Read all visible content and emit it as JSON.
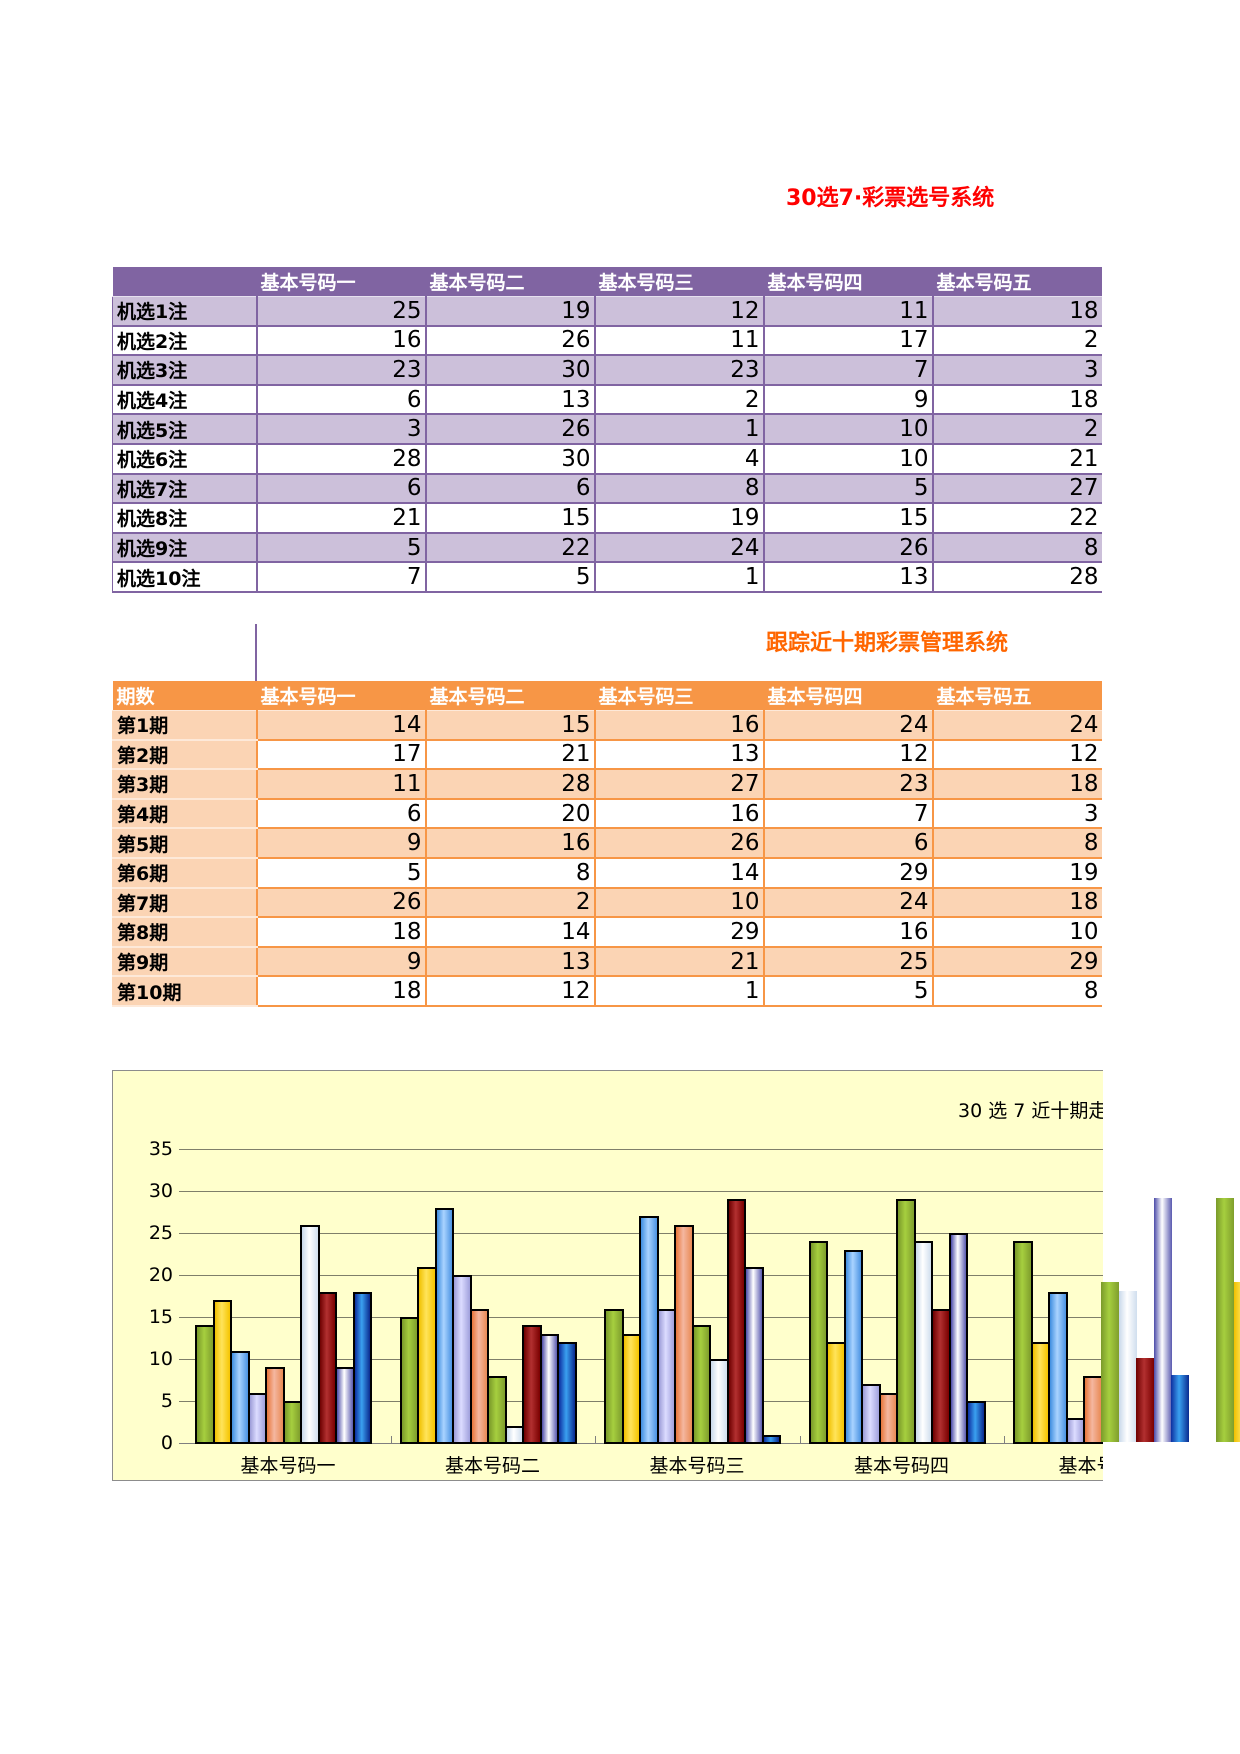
{
  "titles": {
    "main": "30选7·彩票选号系统",
    "tracking": "跟踪近十期彩票管理系统"
  },
  "colors": {
    "main_title": "#ff0000",
    "tracking_title": "#ff6600",
    "pick_header_bg": "#8064a2",
    "pick_band_bg": "#ccc0da",
    "track_header_bg": "#f79646",
    "track_band_bg": "#fbd4b4",
    "chart_bg": "#ffffcc"
  },
  "pick_table": {
    "headers": [
      "",
      "基本号码一",
      "基本号码二",
      "基本号码三",
      "基本号码四",
      "基本号码五"
    ],
    "rows": [
      {
        "label": "机选1注",
        "values": [
          25,
          19,
          12,
          11,
          18
        ]
      },
      {
        "label": "机选2注",
        "values": [
          16,
          26,
          11,
          17,
          2
        ]
      },
      {
        "label": "机选3注",
        "values": [
          23,
          30,
          23,
          7,
          3
        ]
      },
      {
        "label": "机选4注",
        "values": [
          6,
          13,
          2,
          9,
          18
        ]
      },
      {
        "label": "机选5注",
        "values": [
          3,
          26,
          1,
          10,
          2
        ]
      },
      {
        "label": "机选6注",
        "values": [
          28,
          30,
          4,
          10,
          21
        ]
      },
      {
        "label": "机选7注",
        "values": [
          6,
          6,
          8,
          5,
          27
        ]
      },
      {
        "label": "机选8注",
        "values": [
          21,
          15,
          19,
          15,
          22
        ]
      },
      {
        "label": "机选9注",
        "values": [
          5,
          22,
          24,
          26,
          8
        ]
      },
      {
        "label": "机选10注",
        "values": [
          7,
          5,
          1,
          13,
          28
        ]
      }
    ]
  },
  "track_table": {
    "headers": [
      "期数",
      "基本号码一",
      "基本号码二",
      "基本号码三",
      "基本号码四",
      "基本号码五"
    ],
    "rows": [
      {
        "label": "第1期",
        "values": [
          14,
          15,
          16,
          24,
          24
        ]
      },
      {
        "label": "第2期",
        "values": [
          17,
          21,
          13,
          12,
          12
        ]
      },
      {
        "label": "第3期",
        "values": [
          11,
          28,
          27,
          23,
          18
        ]
      },
      {
        "label": "第4期",
        "values": [
          6,
          20,
          16,
          7,
          3
        ]
      },
      {
        "label": "第5期",
        "values": [
          9,
          16,
          26,
          6,
          8
        ]
      },
      {
        "label": "第6期",
        "values": [
          5,
          8,
          14,
          29,
          19
        ]
      },
      {
        "label": "第7期",
        "values": [
          26,
          2,
          10,
          24,
          18
        ]
      },
      {
        "label": "第8期",
        "values": [
          18,
          14,
          29,
          16,
          10
        ]
      },
      {
        "label": "第9期",
        "values": [
          9,
          13,
          21,
          25,
          29
        ]
      },
      {
        "label": "第10期",
        "values": [
          18,
          12,
          1,
          5,
          8
        ]
      }
    ]
  },
  "chart_data": {
    "type": "bar",
    "title": "30 选 7 近十期走",
    "xlabel": "",
    "ylabel": "",
    "ylim": [
      0,
      35
    ],
    "yticks": [
      0,
      5,
      10,
      15,
      20,
      25,
      30,
      35
    ],
    "grid": true,
    "legend": "none visible",
    "categories": [
      "基本号码一",
      "基本号码二",
      "基本号码三",
      "基本号码四",
      "基本号码五"
    ],
    "series": [
      {
        "name": "第1期",
        "values": [
          14,
          15,
          16,
          24,
          24
        ]
      },
      {
        "name": "第2期",
        "values": [
          17,
          21,
          13,
          12,
          12
        ]
      },
      {
        "name": "第3期",
        "values": [
          11,
          28,
          27,
          23,
          18
        ]
      },
      {
        "name": "第4期",
        "values": [
          6,
          20,
          16,
          7,
          3
        ]
      },
      {
        "name": "第5期",
        "values": [
          9,
          16,
          26,
          6,
          8
        ]
      },
      {
        "name": "第6期",
        "values": [
          5,
          8,
          14,
          29,
          19
        ]
      },
      {
        "name": "第7期",
        "values": [
          26,
          2,
          10,
          24,
          18
        ]
      },
      {
        "name": "第8期",
        "values": [
          18,
          14,
          29,
          16,
          10
        ]
      },
      {
        "name": "第9期",
        "values": [
          9,
          13,
          21,
          25,
          29
        ]
      },
      {
        "name": "第10期",
        "values": [
          18,
          12,
          1,
          5,
          8
        ]
      }
    ]
  }
}
